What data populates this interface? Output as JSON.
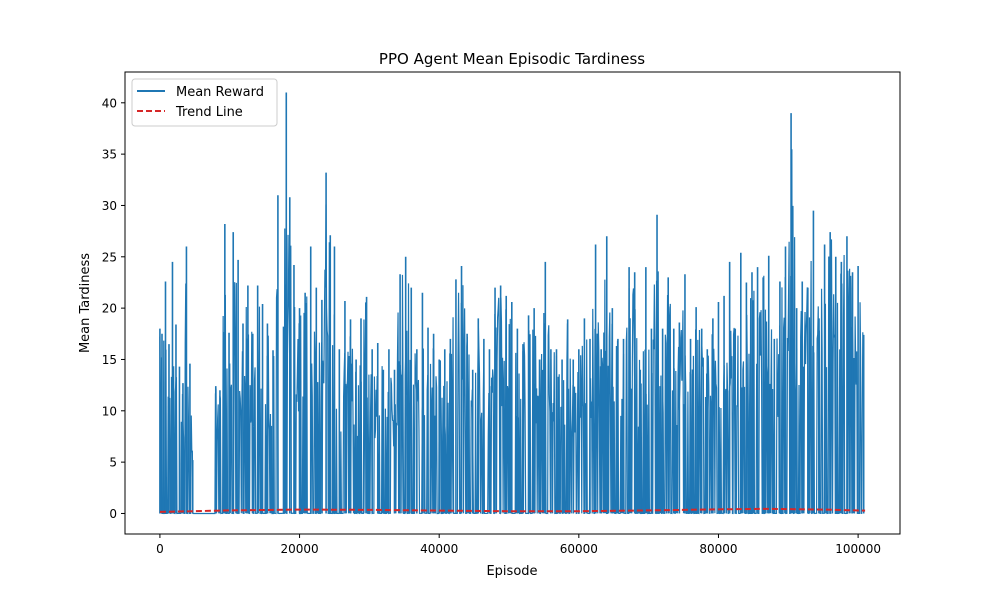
{
  "colors": {
    "background": "#ffffff",
    "series": "#1f77b4",
    "trend": "#d62728",
    "axis": "#000000"
  },
  "chart_data": {
    "type": "line",
    "title": "PPO Agent Mean Episodic Tardiness",
    "xlabel": "Episode",
    "ylabel": "Mean Tardiness",
    "xlim": [
      -5000,
      106000
    ],
    "ylim": [
      -2.0,
      43.0
    ],
    "xticks": [
      0,
      20000,
      40000,
      60000,
      80000,
      100000
    ],
    "xtick_labels": [
      "0",
      "20000",
      "40000",
      "60000",
      "80000",
      "100000"
    ],
    "yticks": [
      0,
      5,
      10,
      15,
      20,
      25,
      30,
      35,
      40
    ],
    "ytick_labels": [
      "0",
      "5",
      "10",
      "15",
      "20",
      "25",
      "30",
      "35",
      "40"
    ],
    "grid": false,
    "legend": {
      "position": "upper-left",
      "entries": [
        "Mean Reward",
        "Trend Line"
      ]
    },
    "series": [
      {
        "name": "Mean Reward",
        "style": "solid",
        "color": "#1f77b4",
        "min": 0,
        "max_envelope": {
          "x": [
            0,
            300,
            800,
            1300,
            1800,
            2300,
            2800,
            3300,
            3800,
            4300,
            4700,
            8000,
            8600,
            9300,
            9900,
            10500,
            11200,
            11900,
            12600,
            13300,
            14000,
            14700,
            15400,
            16200,
            16900,
            17700,
            18100,
            18600,
            19200,
            20000,
            20800,
            21600,
            22400,
            23200,
            23800,
            24400,
            25000,
            25700,
            26500,
            27300,
            28100,
            28800,
            29600,
            30400,
            31200,
            32000,
            32800,
            33600,
            34400,
            35200,
            36000,
            36800,
            37600,
            38400,
            39200,
            40000,
            40800,
            41600,
            42400,
            43200,
            44000,
            44800,
            45600,
            46400,
            47200,
            48000,
            48800,
            49600,
            50400,
            51200,
            52000,
            52800,
            53600,
            54400,
            55200,
            56000,
            56800,
            57600,
            58400,
            59200,
            60000,
            60800,
            61600,
            62400,
            63200,
            64000,
            64800,
            65600,
            66400,
            67200,
            68000,
            68800,
            69600,
            70400,
            71200,
            72000,
            72800,
            73600,
            74400,
            75200,
            76000,
            76800,
            77600,
            78400,
            79200,
            80000,
            80800,
            81600,
            82400,
            83200,
            84000,
            84800,
            85600,
            86400,
            87200,
            88000,
            88800,
            89600,
            90400,
            91200,
            92000,
            92800,
            93600,
            94400,
            95200,
            96000,
            96800,
            97600,
            98400,
            99200,
            100000,
            100800
          ],
          "y": [
            18,
            17.5,
            22.6,
            16.5,
            24.5,
            18.4,
            14.3,
            12.7,
            26,
            14.6,
            5.2,
            12.4,
            12.0,
            28.2,
            17.6,
            27.4,
            24.7,
            18.5,
            22.2,
            17.5,
            22.2,
            20.4,
            18.5,
            15.9,
            31.0,
            18.2,
            41,
            30.8,
            24.2,
            20.0,
            21.5,
            26.0,
            22.0,
            20.8,
            33.2,
            27.1,
            26.0,
            16.0,
            20.7,
            18.9,
            15.0,
            19.0,
            21.1,
            16.0,
            16.6,
            14.0,
            16.0,
            14.0,
            23.3,
            25.0,
            22.0,
            16.0,
            21.5,
            18.1,
            17.5,
            15.0,
            16.0,
            17.0,
            22.8,
            24.1,
            17.5,
            14.0,
            19.0,
            17.0,
            16.0,
            22.0,
            22.2,
            21.2,
            20.6,
            18.0,
            16.5,
            19.3,
            20.0,
            15.0,
            24.5,
            16.0,
            16.0,
            15.0,
            18.9,
            15.0,
            16.0,
            19.0,
            17.0,
            26.2,
            16.0,
            27.0,
            20.0,
            17.0,
            17.0,
            24.0,
            23.5,
            14.0,
            24.0,
            18.0,
            29.1,
            18.0,
            23.0,
            18.0,
            18.6,
            23.3,
            17.0,
            20.1,
            18.0,
            16.0,
            19.0,
            20.6,
            21.2,
            24.5,
            18.0,
            25.4,
            22.5,
            23.5,
            24.0,
            23.0,
            25.1,
            17.0,
            22.6,
            26.0,
            39.0,
            20.0,
            22.6,
            22.0,
            29.5,
            19.0,
            26.2,
            27.4,
            25.0,
            24.5,
            27.0,
            23.5,
            24.1,
            17.4
          ]
        },
        "gap": {
          "x_start": 4800,
          "x_end": 7900
        }
      },
      {
        "name": "Trend Line",
        "style": "dashed",
        "color": "#d62728",
        "x": [
          0,
          10000,
          20000,
          30000,
          40000,
          50000,
          60000,
          70000,
          80000,
          87000,
          95000,
          101000
        ],
        "y": [
          0.15,
          0.3,
          0.38,
          0.35,
          0.28,
          0.22,
          0.22,
          0.3,
          0.4,
          0.45,
          0.38,
          0.28
        ]
      }
    ]
  }
}
